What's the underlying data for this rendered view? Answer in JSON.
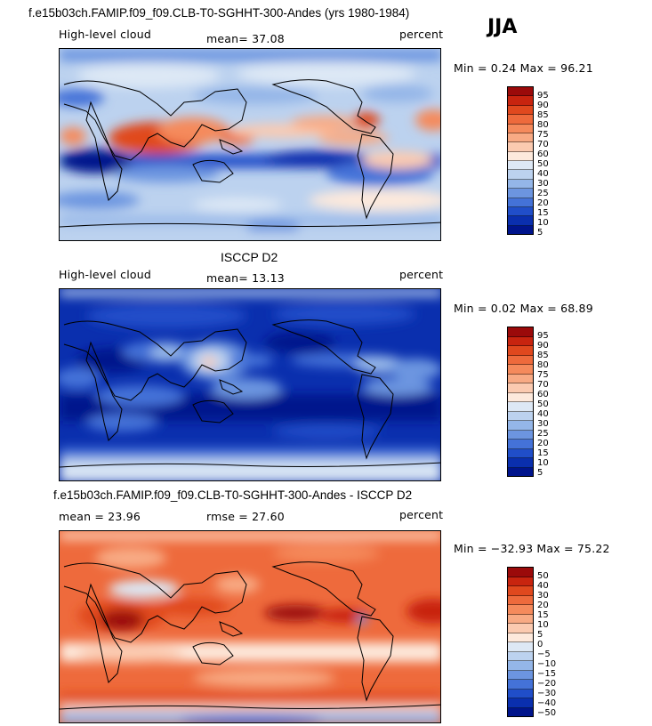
{
  "season": "JJA",
  "chart_data": [
    {
      "type": "heatmap",
      "title": "f.e15b03ch.FAMIP.f09_f09.CLB-T0-SGHHT-300-Andes (yrs 1980-1984)",
      "left_label": "High-level cloud",
      "center_label": "mean=  37.08",
      "right_label": "percent",
      "minmax_label": "Min =   0.24 Max =  96.21",
      "mean": 37.08,
      "min": 0.24,
      "max": 96.21,
      "colorbar": {
        "levels": [
          "95",
          "90",
          "85",
          "80",
          "75",
          "70",
          "60",
          "50",
          "40",
          "30",
          "25",
          "20",
          "15",
          "10",
          "5"
        ],
        "colors": [
          "#9b0a0a",
          "#c8240f",
          "#e0481e",
          "#ee6a3c",
          "#f58a5c",
          "#f8aa84",
          "#fbcab0",
          "#fde9dc",
          "#dde8f5",
          "#bcd2ef",
          "#94b6e8",
          "#6c95e0",
          "#4472d8",
          "#204ec9",
          "#0a2fae",
          "#00148c"
        ]
      }
    },
    {
      "type": "heatmap",
      "title": "ISCCP D2",
      "left_label": "High-level cloud",
      "center_label": "mean=  13.13",
      "right_label": "percent",
      "minmax_label": "Min =   0.02 Max =  68.89",
      "mean": 13.13,
      "min": 0.02,
      "max": 68.89,
      "colorbar": {
        "levels": [
          "95",
          "90",
          "85",
          "80",
          "75",
          "70",
          "60",
          "50",
          "40",
          "30",
          "25",
          "20",
          "15",
          "10",
          "5"
        ],
        "colors": [
          "#9b0a0a",
          "#c8240f",
          "#e0481e",
          "#ee6a3c",
          "#f58a5c",
          "#f8aa84",
          "#fbcab0",
          "#fde9dc",
          "#dde8f5",
          "#bcd2ef",
          "#94b6e8",
          "#6c95e0",
          "#4472d8",
          "#204ec9",
          "#0a2fae",
          "#00148c"
        ]
      }
    },
    {
      "type": "heatmap",
      "title": "f.e15b03ch.FAMIP.f09_f09.CLB-T0-SGHHT-300-Andes - ISCCP D2",
      "left_label": "mean =  23.96",
      "center_label": "rmse =  27.60",
      "right_label": "percent",
      "minmax_label": "Min = −32.93 Max =  75.22",
      "mean": 23.96,
      "rmse": 27.6,
      "min": -32.93,
      "max": 75.22,
      "colorbar": {
        "levels": [
          "50",
          "40",
          "30",
          "20",
          "15",
          "10",
          "5",
          "0",
          "−5",
          "−10",
          "−15",
          "−20",
          "−30",
          "−40",
          "−50"
        ],
        "colors": [
          "#9b0a0a",
          "#c8240f",
          "#e0481e",
          "#ee6a3c",
          "#f58a5c",
          "#f8aa84",
          "#fbcab0",
          "#fde9dc",
          "#dde8f5",
          "#bcd2ef",
          "#94b6e8",
          "#6c95e0",
          "#4472d8",
          "#204ec9",
          "#0a2fae",
          "#00148c"
        ]
      }
    }
  ]
}
